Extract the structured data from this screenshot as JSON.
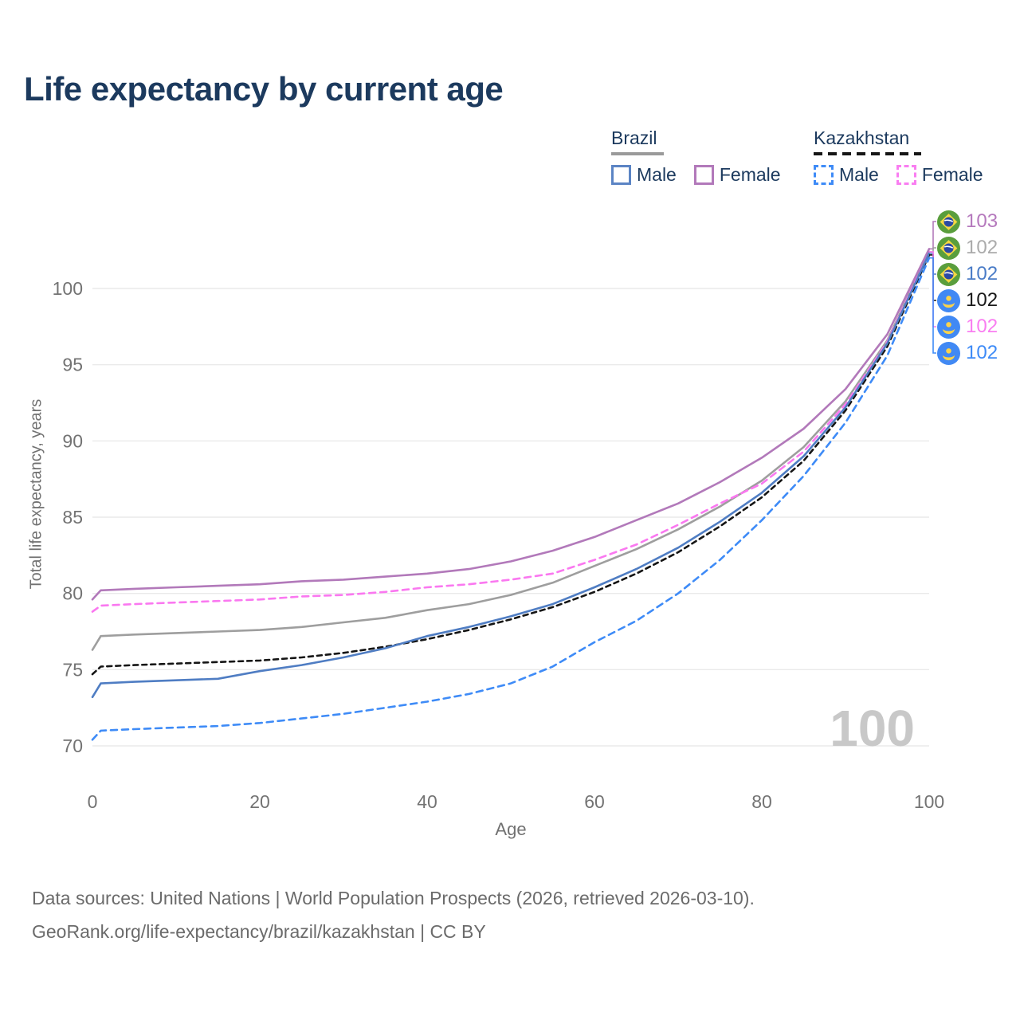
{
  "title": "Life expectancy by current age",
  "legend": {
    "brazil": {
      "label": "Brazil",
      "male": "Male",
      "female": "Female"
    },
    "kazakhstan": {
      "label": "Kazakhstan",
      "male": "Male",
      "female": "Female"
    }
  },
  "watermark_hover_age": "100",
  "footer": {
    "line1": "Data sources: United Nations | World Population Prospects (2026, retrieved 2026-03-10).",
    "line2": "GeoRank.org/life-expectancy/brazil/kazakhstan | CC BY"
  },
  "right_labels": [
    {
      "icon": "brazil-flag-icon",
      "value": "103",
      "color": "#b579bd"
    },
    {
      "icon": "brazil-flag-icon",
      "value": "102",
      "color": "#ababab"
    },
    {
      "icon": "brazil-flag-icon",
      "value": "102",
      "color": "#4a7cc7"
    },
    {
      "icon": "kazakhstan-flag-icon",
      "value": "102",
      "color": "#1a1a1a"
    },
    {
      "icon": "kazakhstan-flag-icon",
      "value": "102",
      "color": "#f97ef1"
    },
    {
      "icon": "kazakhstan-flag-icon",
      "value": "102",
      "color": "#3e8bf7"
    }
  ],
  "colors": {
    "title_text": "#1c3a5e",
    "axis_text": "#737373",
    "gridline": "#eaeaea",
    "watermark": "#c8c8c8",
    "footer_text": "#6b6b6b",
    "brazil_male": "#4f7dc3",
    "brazil_female": "#b279ba",
    "brazil_total": "#9e9e9e",
    "kazakhstan_male": "#3e8bf7",
    "kazakhstan_female": "#fa78f0",
    "kazakhstan_total": "#151515"
  },
  "chart_data": {
    "type": "line",
    "title": "Life expectancy by current age",
    "xlabel": "Age",
    "ylabel": "Total life expectancy, years",
    "xlim": [
      0,
      100
    ],
    "ylim": [
      70,
      103
    ],
    "xticks": [
      0,
      20,
      40,
      60,
      80,
      100
    ],
    "yticks": [
      70,
      75,
      80,
      85,
      90,
      95,
      100
    ],
    "grid": "horizontal",
    "legend_position": "top-right",
    "x": [
      0,
      1,
      5,
      10,
      15,
      20,
      25,
      30,
      35,
      40,
      45,
      50,
      55,
      60,
      65,
      70,
      75,
      80,
      85,
      90,
      95,
      100
    ],
    "series": [
      {
        "name": "Brazil Female",
        "country": "Brazil",
        "sex": "Female",
        "style": "solid",
        "color": "#b279ba",
        "end_label": "103",
        "label_row": 0,
        "values": [
          79.6,
          80.2,
          80.3,
          80.4,
          80.5,
          80.6,
          80.8,
          80.9,
          81.1,
          81.3,
          81.6,
          82.1,
          82.8,
          83.7,
          84.8,
          85.9,
          87.3,
          88.9,
          90.8,
          93.4,
          97.0,
          102.6
        ]
      },
      {
        "name": "Brazil Both sexes",
        "country": "Brazil",
        "sex": "Both",
        "style": "solid",
        "color": "#9e9e9e",
        "end_label": "102",
        "label_row": 1,
        "values": [
          76.3,
          77.2,
          77.3,
          77.4,
          77.5,
          77.6,
          77.8,
          78.1,
          78.4,
          78.9,
          79.3,
          79.9,
          80.7,
          81.8,
          82.9,
          84.2,
          85.7,
          87.4,
          89.6,
          92.6,
          96.6,
          102.4
        ]
      },
      {
        "name": "Brazil Male",
        "country": "Brazil",
        "sex": "Male",
        "style": "solid",
        "color": "#4f7dc3",
        "end_label": "102",
        "label_row": 2,
        "values": [
          73.2,
          74.1,
          74.2,
          74.3,
          74.4,
          74.9,
          75.3,
          75.8,
          76.4,
          77.2,
          77.8,
          78.5,
          79.3,
          80.4,
          81.6,
          83.0,
          84.7,
          86.6,
          89.0,
          92.2,
          96.4,
          102.3
        ]
      },
      {
        "name": "Kazakhstan Both sexes",
        "country": "Kazakhstan",
        "sex": "Both",
        "style": "dashed",
        "color": "#151515",
        "end_label": "102",
        "label_row": 3,
        "values": [
          74.7,
          75.2,
          75.3,
          75.4,
          75.5,
          75.6,
          75.8,
          76.1,
          76.5,
          77.0,
          77.6,
          78.3,
          79.1,
          80.1,
          81.3,
          82.7,
          84.4,
          86.3,
          88.7,
          92.0,
          96.2,
          102.2
        ]
      },
      {
        "name": "Kazakhstan Female",
        "country": "Kazakhstan",
        "sex": "Female",
        "style": "dashed",
        "color": "#fa78f0",
        "end_label": "102",
        "label_row": 4,
        "values": [
          78.8,
          79.2,
          79.3,
          79.4,
          79.5,
          79.6,
          79.8,
          79.9,
          80.1,
          80.4,
          80.6,
          80.9,
          81.3,
          82.2,
          83.2,
          84.5,
          85.9,
          87.2,
          89.3,
          92.4,
          96.5,
          102.4
        ]
      },
      {
        "name": "Kazakhstan Male",
        "country": "Kazakhstan",
        "sex": "Male",
        "style": "dashed",
        "color": "#3e8bf7",
        "end_label": "102",
        "label_row": 5,
        "values": [
          70.4,
          71.0,
          71.1,
          71.2,
          71.3,
          71.5,
          71.8,
          72.1,
          72.5,
          72.9,
          73.4,
          74.1,
          75.2,
          76.8,
          78.2,
          80.0,
          82.2,
          84.8,
          87.7,
          91.2,
          95.6,
          102.0
        ]
      }
    ]
  }
}
